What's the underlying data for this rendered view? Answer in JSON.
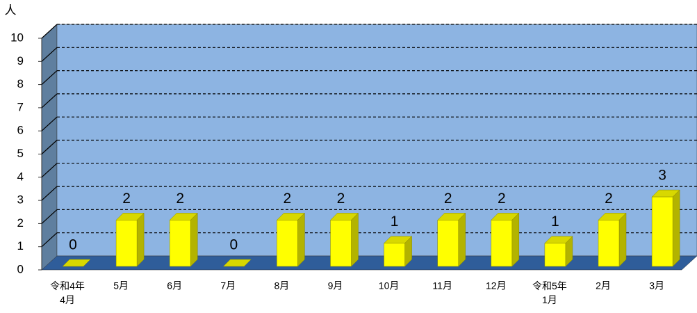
{
  "chart_data": {
    "type": "bar3d",
    "y_label": "人",
    "categories": [
      "令和4年\n4月",
      "5月",
      "6月",
      "7月",
      "8月",
      "9月",
      "10月",
      "11月",
      "12月",
      "令和5年\n1月",
      "2月",
      "3月"
    ],
    "values": [
      0,
      2,
      2,
      0,
      2,
      2,
      1,
      2,
      2,
      1,
      2,
      3
    ],
    "color": "#ffff00",
    "ylim": [
      0,
      10
    ],
    "yticks": [
      0,
      1,
      2,
      3,
      4,
      5,
      6,
      7,
      8,
      9,
      10
    ],
    "grid": true
  }
}
